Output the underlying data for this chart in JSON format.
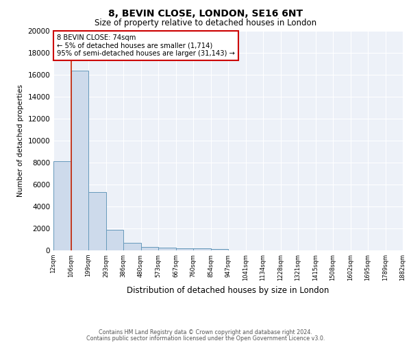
{
  "title1": "8, BEVIN CLOSE, LONDON, SE16 6NT",
  "title2": "Size of property relative to detached houses in London",
  "xlabel": "Distribution of detached houses by size in London",
  "ylabel": "Number of detached properties",
  "bin_labels": [
    "12sqm",
    "106sqm",
    "199sqm",
    "293sqm",
    "386sqm",
    "480sqm",
    "573sqm",
    "667sqm",
    "760sqm",
    "854sqm",
    "947sqm",
    "1041sqm",
    "1134sqm",
    "1228sqm",
    "1321sqm",
    "1415sqm",
    "1508sqm",
    "1602sqm",
    "1695sqm",
    "1789sqm",
    "1882sqm"
  ],
  "bar_heights": [
    8100,
    16400,
    5300,
    1850,
    700,
    310,
    230,
    190,
    170,
    130,
    0,
    0,
    0,
    0,
    0,
    0,
    0,
    0,
    0,
    0
  ],
  "bar_color": "#cddaeb",
  "bar_edge_color": "#6699bb",
  "background_color": "#edf1f8",
  "ylim": [
    0,
    20000
  ],
  "yticks": [
    0,
    2000,
    4000,
    6000,
    8000,
    10000,
    12000,
    14000,
    16000,
    18000,
    20000
  ],
  "red_line_x": 1,
  "annotation_title": "8 BEVIN CLOSE: 74sqm",
  "annotation_line1": "← 5% of detached houses are smaller (1,714)",
  "annotation_line2": "95% of semi-detached houses are larger (31,143) →",
  "annotation_box_color": "#ffffff",
  "annotation_box_edge": "#cc0000",
  "red_line_color": "#cc2200",
  "footer1": "Contains HM Land Registry data © Crown copyright and database right 2024.",
  "footer2": "Contains public sector information licensed under the Open Government Licence v3.0."
}
